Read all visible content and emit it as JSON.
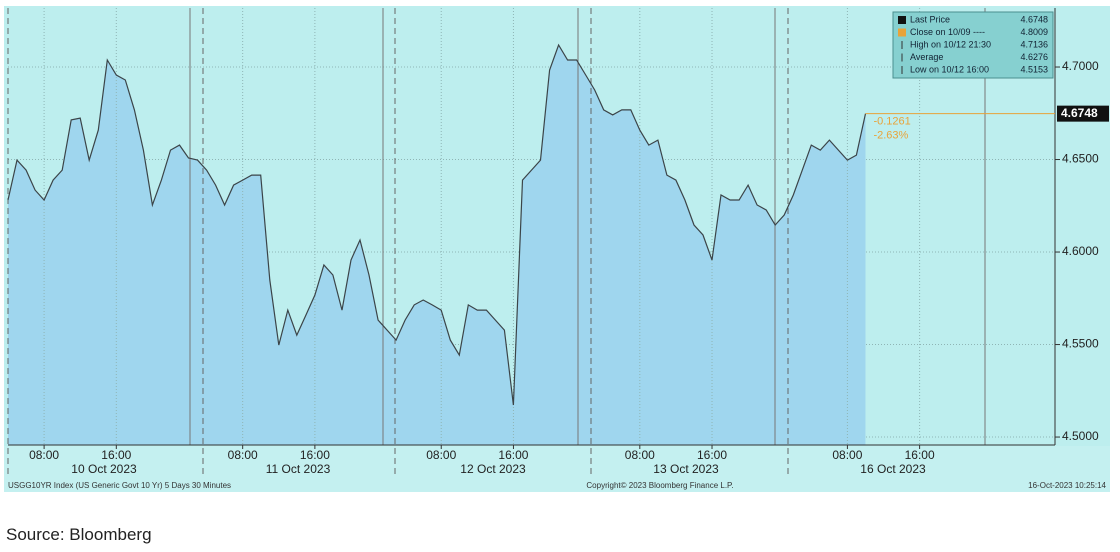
{
  "chart_data": {
    "type": "area",
    "values": [
      4.6281,
      4.6497,
      4.6443,
      4.6335,
      4.6281,
      4.6389,
      4.6443,
      4.6714,
      4.6724,
      4.6497,
      4.6659,
      4.7038,
      4.6957,
      4.693,
      4.6768,
      4.6551,
      4.6254,
      4.6389,
      4.6551,
      4.6578,
      4.6508,
      4.6497,
      4.6443,
      4.6362,
      4.6254,
      4.6362,
      4.6389,
      4.6416,
      4.6416,
      4.5849,
      4.5497,
      4.5686,
      4.5551,
      4.5659,
      4.5768,
      4.593,
      4.5876,
      4.5686,
      4.5957,
      4.6065,
      4.5876,
      4.5632,
      4.5578,
      4.5524,
      4.5632,
      4.5714,
      4.5741,
      4.5714,
      4.5686,
      4.5524,
      4.5443,
      4.5714,
      4.5686,
      4.5686,
      4.5632,
      4.5578,
      4.5173,
      4.6389,
      4.6443,
      4.6497,
      4.6984,
      4.7119,
      4.7038,
      4.7038,
      4.6957,
      4.6876,
      4.6768,
      4.6741,
      4.6768,
      4.6768,
      4.6659,
      4.6578,
      4.6605,
      4.6416,
      4.6389,
      4.6281,
      4.6146,
      4.6092,
      4.5957,
      4.6308,
      4.6281,
      4.6281,
      4.6362,
      4.6254,
      4.6227,
      4.6146,
      4.62,
      4.6308,
      4.6443,
      4.6578,
      4.6551,
      4.6605,
      4.6551,
      4.6497,
      4.6524,
      4.6748,
      null,
      null,
      null,
      null,
      null,
      null,
      null,
      null,
      null,
      null,
      null,
      null,
      null,
      null,
      null,
      null,
      null,
      null,
      null,
      null,
      null
    ],
    "categories": [
      null,
      null,
      null,
      null,
      "08:00",
      null,
      null,
      null,
      null,
      null,
      null,
      null,
      "16:00",
      null,
      null,
      null,
      null,
      null,
      null,
      null,
      null,
      null,
      null,
      null,
      null,
      null,
      "08:00",
      null,
      null,
      null,
      null,
      null,
      null,
      null,
      "16:00",
      null,
      null,
      null,
      null,
      null,
      null,
      null,
      null,
      null,
      null,
      null,
      null,
      null,
      "08:00",
      null,
      null,
      null,
      null,
      null,
      null,
      null,
      "16:00",
      null,
      null,
      null,
      null,
      null,
      null,
      null,
      null,
      null,
      null,
      null,
      null,
      null,
      "08:00",
      null,
      null,
      null,
      null,
      null,
      null,
      null,
      "16:00",
      null,
      null,
      null,
      null,
      null,
      null,
      null,
      null,
      null,
      null,
      null,
      null,
      null,
      null,
      "08:00",
      null,
      null,
      null,
      null,
      null,
      null,
      null,
      "16:00",
      null,
      null,
      null,
      null,
      null,
      null,
      null,
      null,
      null,
      null,
      null,
      null,
      null,
      null,
      null
    ],
    "dates": [
      "10 Oct 2023",
      "11 Oct 2023",
      "12 Oct 2023",
      "13 Oct 2023",
      "16 Oct 2023"
    ],
    "ylim": [
      4.4957,
      4.7319
    ],
    "yticks": [
      {
        "value": 4.5,
        "label": "4.5000"
      },
      {
        "value": 4.55,
        "label": "4.5500"
      },
      {
        "value": 4.6,
        "label": "4.6000"
      },
      {
        "value": 4.65,
        "label": "4.6500"
      },
      {
        "value": 4.7,
        "label": "4.7000"
      }
    ],
    "grid": true,
    "color": "#3b4448",
    "fill": "#9fd6ee",
    "stats": [
      {
        "label": "Last Price",
        "value": 4.6748,
        "color": "#111111"
      },
      {
        "label": "Close on 10/09 ----",
        "value": 4.8009,
        "color": "#e8a33a"
      },
      {
        "label": "High on 10/12 21:30",
        "value": 4.7136
      },
      {
        "label": "Average",
        "value": 4.6276
      },
      {
        "label": "Low on 10/12 16:00",
        "value": 4.5153
      }
    ],
    "change": "-0.1261",
    "change_pct": "-2.63%",
    "change_color": "#e8a33a",
    "footer_left": "USGG10YR Index (US Generic Govt 10 Yr) 5 Days 30 Minutes",
    "footer_center": "Copyright© 2023 Bloomberg Finance L.P.",
    "footer_right": "16-Oct-2023 10:25:14"
  },
  "source": "Source: Bloomberg"
}
